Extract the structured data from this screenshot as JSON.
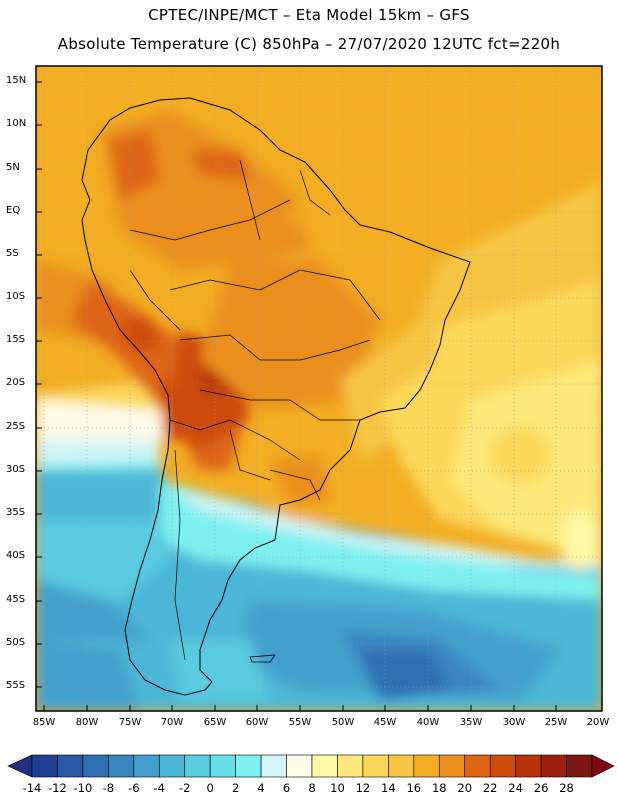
{
  "title_line1": "CPTEC/INPE/MCT –  Eta Model 15km – GFS",
  "title_line2": "Absolute Temperature (C) 850hPa – 27/07/2020 12UTC fct=220h",
  "lat_labels": [
    "15N",
    "10N",
    "5N",
    "EQ",
    "5S",
    "10S",
    "15S",
    "20S",
    "25S",
    "30S",
    "35S",
    "40S",
    "45S",
    "50S",
    "55S"
  ],
  "lon_labels": [
    "85W",
    "80W",
    "75W",
    "70W",
    "65W",
    "60W",
    "55W",
    "50W",
    "45W",
    "40W",
    "35W",
    "30W",
    "25W",
    "20W"
  ],
  "colorbar": {
    "labels": [
      "-14",
      "-12",
      "-10",
      "-8",
      "-6",
      "-4",
      "-2",
      "0",
      "2",
      "4",
      "6",
      "8",
      "10",
      "12",
      "14",
      "16",
      "18",
      "20",
      "22",
      "24",
      "26",
      "28"
    ],
    "colors": [
      "#1f3f93",
      "#2a59a6",
      "#2f70b4",
      "#3a86c1",
      "#43a0cc",
      "#4cb6d6",
      "#58cbe0",
      "#66dfe9",
      "#7ff0f0",
      "#d2f4f6",
      "#fdfae8",
      "#fef7a3",
      "#fde879",
      "#fcd85a",
      "#f7c443",
      "#f2ad22",
      "#ea8f1d",
      "#de6512",
      "#cd4c0a",
      "#b8320a",
      "#9c200c",
      "#7a1710"
    ],
    "under_color": "#23307f",
    "over_color": "#800519"
  }
}
